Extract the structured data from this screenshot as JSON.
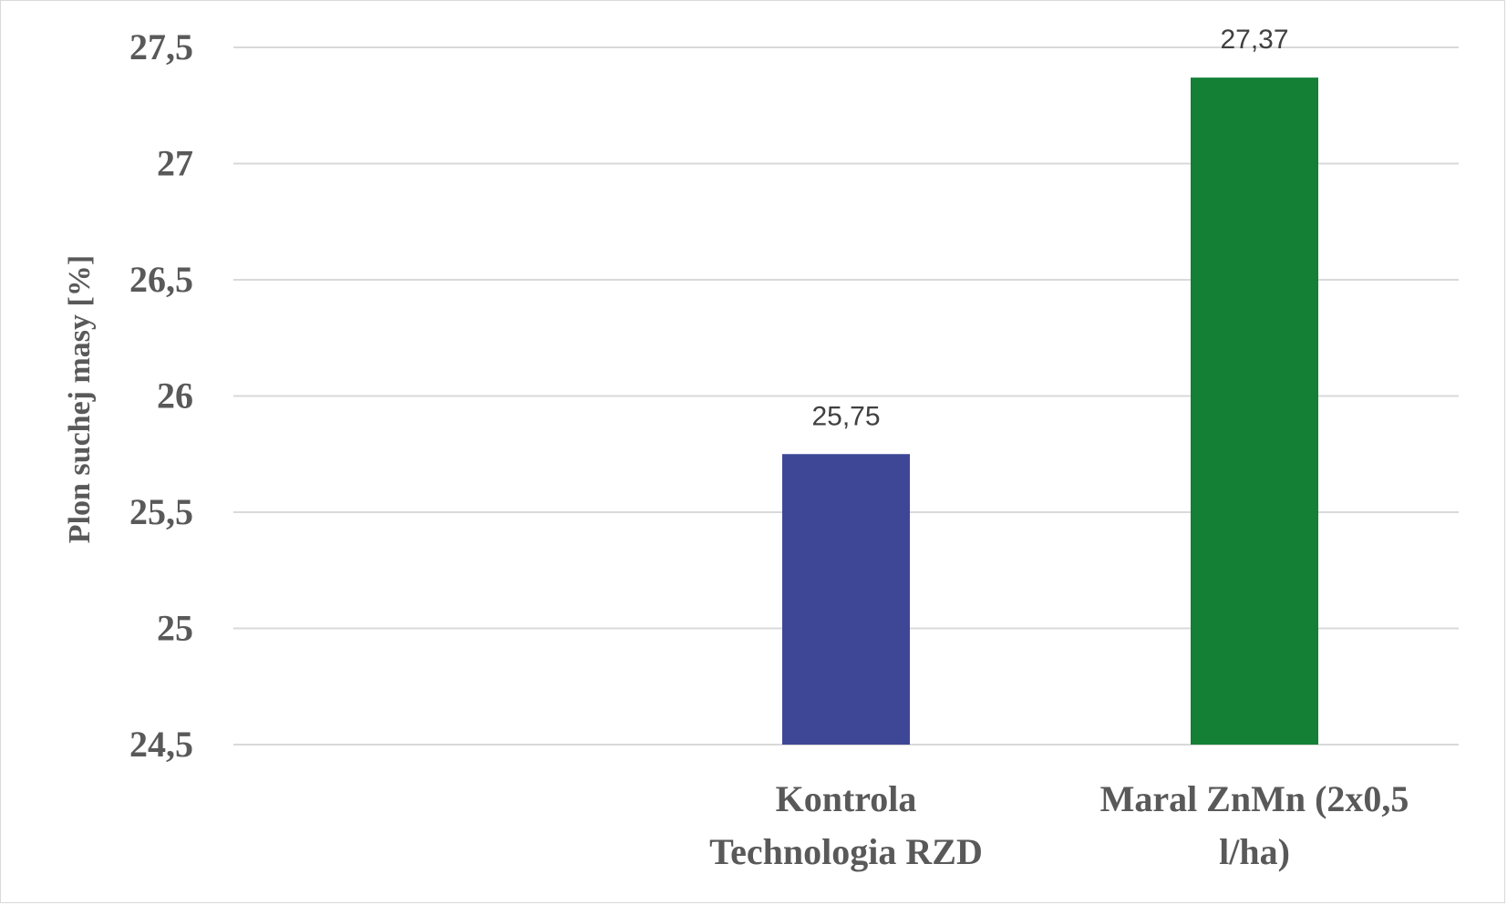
{
  "chart_data": {
    "type": "bar",
    "ylabel": "Plon suchej masy [%]",
    "xlabel": "",
    "ylim": [
      24.5,
      27.5
    ],
    "yticks": [
      24.5,
      25,
      25.5,
      26,
      26.5,
      27,
      27.5
    ],
    "ytick_labels": [
      "24,5",
      "25",
      "25,5",
      "26",
      "26,5",
      "27",
      "27,5"
    ],
    "grid": true,
    "categories": [
      [
        "Kontrola",
        "Technologia RZD"
      ],
      [
        "Maral ZnMn (2x0,5",
        "l/ha)"
      ]
    ],
    "values": [
      25.75,
      27.37
    ],
    "value_labels": [
      "25,75",
      "27,37"
    ],
    "colors": [
      "#3e4796",
      "#138035"
    ]
  }
}
